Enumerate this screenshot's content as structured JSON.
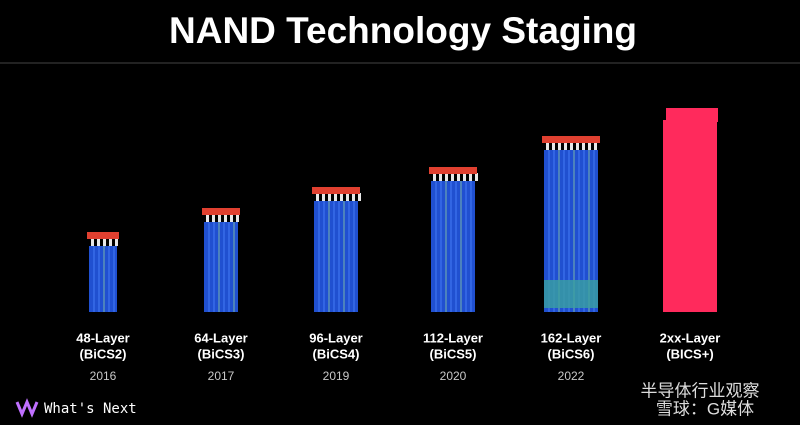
{
  "title": "NAND Technology Staging",
  "items": [
    {
      "layer": "48-Layer",
      "name": "(BiCS2)",
      "year": "2016"
    },
    {
      "layer": "64-Layer",
      "name": "(BiCS3)",
      "year": "2017"
    },
    {
      "layer": "96-Layer",
      "name": "(BiCS4)",
      "year": "2019"
    },
    {
      "layer": "112-Layer",
      "name": "(BiCS5)",
      "year": "2020"
    },
    {
      "layer": "162-Layer",
      "name": "(BiCS6)",
      "year": "2022"
    },
    {
      "layer": "2xx-Layer",
      "name": "(BICS+)"
    }
  ],
  "footer": "What's Next",
  "watermark": [
    "半导体行业观察",
    "雪球：G媒体"
  ]
}
